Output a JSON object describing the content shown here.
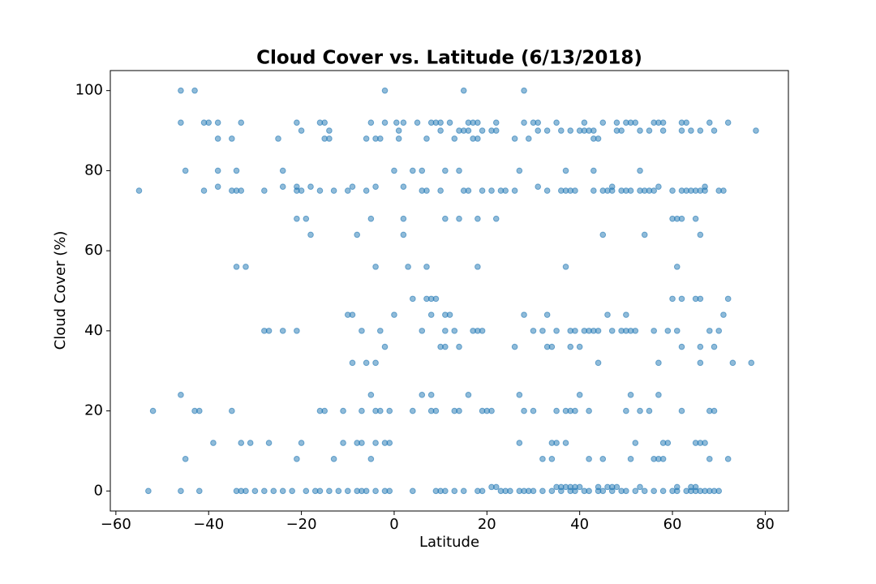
{
  "chart_data": {
    "type": "scatter",
    "title": "Cloud Cover vs. Latitude (6/13/2018)",
    "x_label": "Latitude",
    "y_label": "Cloud Cover (%)",
    "color": "#1f77b4",
    "grid": false,
    "xlim": [
      -61.2,
      85
    ],
    "ylim": [
      -5,
      105
    ],
    "xticks": [
      {
        "value": -60,
        "label": "−60"
      },
      {
        "value": -40,
        "label": "−40"
      },
      {
        "value": -20,
        "label": "−20"
      },
      0,
      20,
      40,
      60,
      80
    ],
    "yticks": [
      0,
      20,
      40,
      60,
      80,
      100
    ],
    "x": [
      -46,
      -43,
      -2,
      15,
      28,
      -46,
      -41,
      -40,
      -38,
      -33,
      -21,
      -16,
      -15,
      -5,
      -2,
      0.5,
      2,
      5,
      8,
      9,
      10,
      12,
      16,
      17,
      18,
      22,
      28,
      30,
      31,
      35,
      41,
      45,
      48,
      50,
      51,
      52,
      56,
      57,
      58,
      62,
      63,
      68,
      72,
      -20,
      -14,
      1,
      10,
      14,
      15,
      16,
      19,
      21,
      22,
      31,
      33,
      36,
      38,
      40,
      41,
      42,
      43,
      48,
      49,
      53,
      55,
      58,
      62,
      64,
      66,
      69,
      78,
      -38,
      -35,
      -25,
      -15,
      -14,
      -6,
      -4,
      -3,
      1,
      7,
      13,
      17,
      18,
      26,
      29,
      43,
      44,
      -45,
      -38,
      -34,
      -24,
      0,
      4,
      6,
      11,
      14,
      27,
      37,
      43,
      53,
      -38,
      -24,
      -21,
      -18,
      -9,
      2,
      -4,
      31,
      47,
      57,
      67,
      -55,
      -41,
      -35,
      -34,
      -33,
      -28,
      -21,
      -20,
      -16,
      -13,
      -10,
      -6,
      6,
      7,
      10,
      15,
      16,
      19,
      21,
      23,
      24,
      26,
      33,
      36,
      37,
      38,
      39,
      43,
      45,
      46,
      47,
      49,
      50,
      51,
      53,
      54,
      55,
      56,
      60,
      62,
      63,
      64,
      65,
      66,
      67,
      70,
      71,
      -21,
      -19,
      -5,
      2,
      11,
      14,
      18,
      22,
      60,
      61,
      62,
      65,
      -18,
      -8,
      2,
      45,
      54,
      66,
      -34,
      -32,
      -4,
      3,
      7,
      18,
      37,
      61,
      4,
      7,
      8,
      9,
      60,
      62,
      65,
      66,
      72,
      -10,
      -9,
      0,
      8,
      11,
      12,
      28,
      33,
      46,
      50,
      71,
      -28,
      -27,
      -24,
      -21,
      -7,
      -3,
      6,
      11,
      13,
      17,
      18,
      19,
      30,
      32,
      35,
      38,
      39,
      41,
      42,
      43,
      44,
      47,
      49,
      50,
      51,
      52,
      56,
      59,
      61,
      68,
      70,
      -2,
      10,
      11,
      14,
      26,
      33,
      34,
      38,
      40,
      62,
      66,
      69,
      -9,
      -6,
      -4,
      44,
      57,
      66,
      73,
      77,
      -46,
      -5,
      6,
      8,
      16,
      27,
      40,
      51,
      57,
      -52,
      -43,
      -42,
      -35,
      -16,
      -15,
      -11,
      -7,
      -4,
      -3,
      -1,
      4,
      8,
      9,
      13,
      14,
      19,
      20,
      21,
      28,
      30,
      35,
      37,
      38,
      39,
      42,
      50,
      53,
      55,
      62,
      68,
      69,
      -39,
      -33,
      -31,
      -27,
      -20,
      -11,
      -8,
      -7,
      -4,
      -2,
      -1,
      27,
      34,
      35,
      37,
      52,
      58,
      59,
      65,
      66,
      67,
      -45,
      -21,
      -13,
      -5,
      32,
      34,
      42,
      45,
      51,
      56,
      57,
      58,
      68,
      72,
      21,
      22,
      35,
      36,
      37,
      38,
      39,
      40,
      44,
      46,
      47,
      48,
      53,
      61,
      64,
      65,
      -53,
      -46,
      -42,
      -34,
      -33,
      -32,
      -30,
      -28,
      -26,
      -24,
      -22,
      -19,
      -17,
      -16,
      -14,
      -12,
      -10,
      -8,
      -7,
      -6,
      -4,
      -2,
      -1,
      4,
      9,
      10,
      11,
      13,
      15,
      18,
      19,
      23,
      24,
      25,
      27,
      28,
      29,
      30,
      32,
      34,
      36,
      38,
      39,
      41,
      42,
      44,
      45,
      47,
      49,
      50,
      52,
      54,
      56,
      58,
      60,
      61,
      63,
      64,
      65,
      66,
      67,
      68,
      69,
      70
    ],
    "values": [
      100,
      100,
      100,
      100,
      100,
      92,
      92,
      92,
      92,
      92,
      92,
      92,
      92,
      92,
      92,
      92,
      92,
      92,
      92,
      92,
      92,
      92,
      92,
      92,
      92,
      92,
      92,
      92,
      92,
      92,
      92,
      92,
      92,
      92,
      92,
      92,
      92,
      92,
      92,
      92,
      92,
      92,
      92,
      90,
      90,
      90,
      90,
      90,
      90,
      90,
      90,
      90,
      90,
      90,
      90,
      90,
      90,
      90,
      90,
      90,
      90,
      90,
      90,
      90,
      90,
      90,
      90,
      90,
      90,
      90,
      90,
      88,
      88,
      88,
      88,
      88,
      88,
      88,
      88,
      88,
      88,
      88,
      88,
      88,
      88,
      88,
      88,
      88,
      80,
      80,
      80,
      80,
      80,
      80,
      80,
      80,
      80,
      80,
      80,
      80,
      80,
      76,
      76,
      76,
      76,
      76,
      76,
      76,
      76,
      76,
      76,
      76,
      75,
      75,
      75,
      75,
      75,
      75,
      75,
      75,
      75,
      75,
      75,
      75,
      75,
      75,
      75,
      75,
      75,
      75,
      75,
      75,
      75,
      75,
      75,
      75,
      75,
      75,
      75,
      75,
      75,
      75,
      75,
      75,
      75,
      75,
      75,
      75,
      75,
      75,
      75,
      75,
      75,
      75,
      75,
      75,
      75,
      75,
      75,
      68,
      68,
      68,
      68,
      68,
      68,
      68,
      68,
      68,
      68,
      68,
      68,
      64,
      64,
      64,
      64,
      64,
      64,
      56,
      56,
      56,
      56,
      56,
      56,
      56,
      56,
      48,
      48,
      48,
      48,
      48,
      48,
      48,
      48,
      48,
      44,
      44,
      44,
      44,
      44,
      44,
      44,
      44,
      44,
      44,
      44,
      40,
      40,
      40,
      40,
      40,
      40,
      40,
      40,
      40,
      40,
      40,
      40,
      40,
      40,
      40,
      40,
      40,
      40,
      40,
      40,
      40,
      40,
      40,
      40,
      40,
      40,
      40,
      40,
      40,
      40,
      40,
      36,
      36,
      36,
      36,
      36,
      36,
      36,
      36,
      36,
      36,
      36,
      36,
      32,
      32,
      32,
      32,
      32,
      32,
      32,
      32,
      24,
      24,
      24,
      24,
      24,
      24,
      24,
      24,
      24,
      20,
      20,
      20,
      20,
      20,
      20,
      20,
      20,
      20,
      20,
      20,
      20,
      20,
      20,
      20,
      20,
      20,
      20,
      20,
      20,
      20,
      20,
      20,
      20,
      20,
      20,
      20,
      20,
      20,
      20,
      20,
      20,
      12,
      12,
      12,
      12,
      12,
      12,
      12,
      12,
      12,
      12,
      12,
      12,
      12,
      12,
      12,
      12,
      12,
      12,
      12,
      12,
      12,
      8,
      8,
      8,
      8,
      8,
      8,
      8,
      8,
      8,
      8,
      8,
      8,
      8,
      8,
      1,
      1,
      1,
      1,
      1,
      1,
      1,
      1,
      1,
      1,
      1,
      1,
      1,
      1,
      1,
      1,
      0,
      0,
      0,
      0,
      0,
      0,
      0,
      0,
      0,
      0,
      0,
      0,
      0,
      0,
      0,
      0,
      0,
      0,
      0,
      0,
      0,
      0,
      0,
      0,
      0,
      0,
      0,
      0,
      0,
      0,
      0,
      0,
      0,
      0,
      0,
      0,
      0,
      0,
      0,
      0,
      0,
      0,
      0,
      0,
      0,
      0,
      0,
      0,
      0,
      0,
      0,
      0,
      0,
      0,
      0,
      0,
      0,
      0,
      0,
      0,
      0,
      0,
      0,
      0
    ]
  }
}
